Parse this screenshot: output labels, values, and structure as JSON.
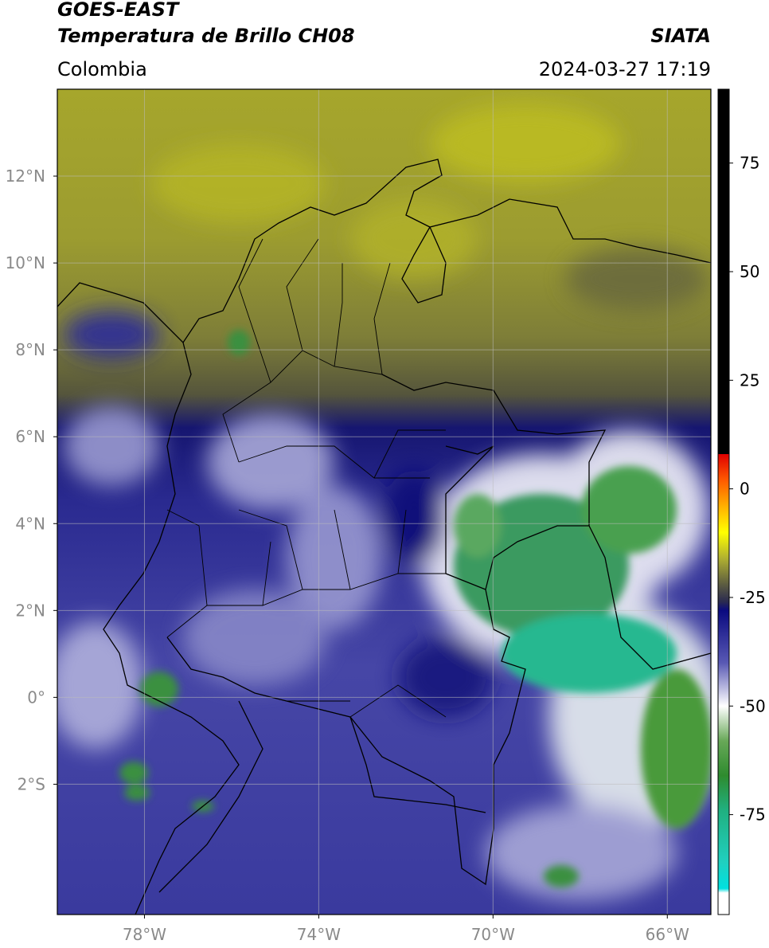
{
  "header": {
    "title": "GOES-EAST",
    "subtitle": "Temperatura de Brillo CH08",
    "source": "SIATA",
    "region": "Colombia",
    "timestamp": "2024-03-27 17:19"
  },
  "map": {
    "xlim": [
      -80,
      -65
    ],
    "ylim": [
      -5,
      14
    ],
    "xticks": [
      {
        "value": -78,
        "label": "78°W"
      },
      {
        "value": -74,
        "label": "74°W"
      },
      {
        "value": -70,
        "label": "70°W"
      },
      {
        "value": -66,
        "label": "66°W"
      }
    ],
    "yticks": [
      {
        "value": 12,
        "label": "12°N"
      },
      {
        "value": 10,
        "label": "10°N"
      },
      {
        "value": 8,
        "label": "8°N"
      },
      {
        "value": 6,
        "label": "6°N"
      },
      {
        "value": 4,
        "label": "4°N"
      },
      {
        "value": 2,
        "label": "2°N"
      },
      {
        "value": 0,
        "label": "0°"
      },
      {
        "value": -2,
        "label": "2°S"
      }
    ],
    "grid": true
  },
  "colorbar": {
    "lim": [
      -98,
      92
    ],
    "ticks": [
      75,
      50,
      25,
      0,
      -25,
      -50,
      -75
    ],
    "stops": [
      {
        "value": 92,
        "color": "#000000"
      },
      {
        "value": 8,
        "color": "#000000"
      },
      {
        "value": 8,
        "color": "#e00000"
      },
      {
        "value": 2,
        "color": "#ff5a00"
      },
      {
        "value": -4,
        "color": "#ffb000"
      },
      {
        "value": -10,
        "color": "#ffff00"
      },
      {
        "value": -16,
        "color": "#b0b030"
      },
      {
        "value": -22,
        "color": "#5c5c40"
      },
      {
        "value": -26,
        "color": "#2a2a50"
      },
      {
        "value": -28,
        "color": "#0a0a80"
      },
      {
        "value": -40,
        "color": "#5858b4"
      },
      {
        "value": -50,
        "color": "#ffffff"
      },
      {
        "value": -58,
        "color": "#68a858"
      },
      {
        "value": -66,
        "color": "#2e8b2e"
      },
      {
        "value": -74,
        "color": "#20b080"
      },
      {
        "value": -86,
        "color": "#20d0c0"
      },
      {
        "value": -92,
        "color": "#00e0e0"
      },
      {
        "value": -93,
        "color": "#ffffff"
      },
      {
        "value": -98,
        "color": "#ffffff"
      }
    ]
  }
}
